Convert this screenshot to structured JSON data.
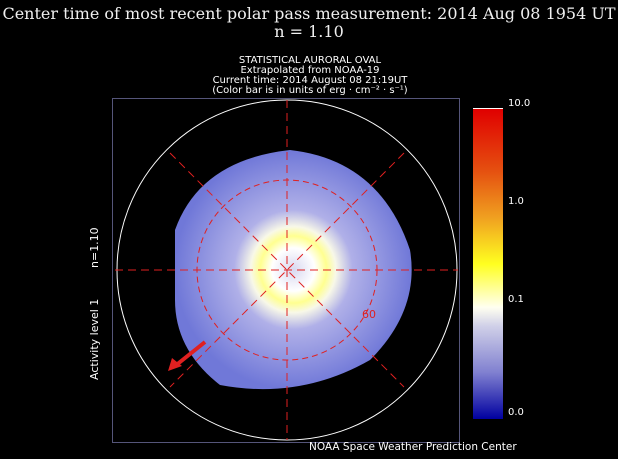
{
  "header": {
    "line1": "Center time of most recent polar pass measurement: 2014 Aug 08 1954 UT",
    "line2": "n = 1.10"
  },
  "plot": {
    "lines": [
      "STATISTICAL AURORAL OVAL",
      "Extrapolated from NOAA-19",
      "Current time: 2014 August 08 21:19UT",
      "(Color bar is in units of erg · cm⁻² · s⁻¹)"
    ],
    "left_label_n": "n=1.10",
    "left_label_activity": "Activity level 1",
    "latitude_label": "60"
  },
  "colorbar": {
    "ticks": [
      "10.0",
      "1.0",
      "0.1",
      "0.0"
    ],
    "colors": [
      "#e00000",
      "#f0a020",
      "#ffff20",
      "#ffffff",
      "#0000a0"
    ]
  },
  "footer": {
    "credit": "NOAA Space Weather Prediction Center"
  }
}
